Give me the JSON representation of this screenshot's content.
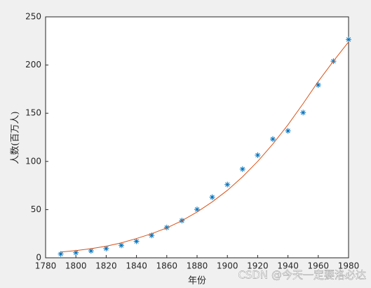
{
  "chart_data": {
    "type": "scatter",
    "xlabel": "年份",
    "ylabel": "人数(百万人)",
    "watermark": "CSDN @今天一定要洛必达",
    "x": [
      1790,
      1800,
      1810,
      1820,
      1830,
      1840,
      1850,
      1860,
      1870,
      1880,
      1890,
      1900,
      1910,
      1920,
      1930,
      1940,
      1950,
      1960,
      1970,
      1980
    ],
    "series": [
      {
        "kind": "scatter",
        "marker": "*",
        "color": "#0072bd",
        "values": [
          3.9,
          5.3,
          7.2,
          9.6,
          12.9,
          17.1,
          23.2,
          31.4,
          38.6,
          50.2,
          62.9,
          76.0,
          92.0,
          106.5,
          123.2,
          131.7,
          150.7,
          179.3,
          204.0,
          226.5
        ]
      },
      {
        "kind": "line",
        "color": "#d95319",
        "values": [
          6,
          7.5,
          9.5,
          12,
          15.5,
          20,
          25,
          31,
          38.5,
          47.5,
          58,
          70,
          84,
          100,
          118,
          138,
          160,
          183,
          204,
          224
        ]
      }
    ],
    "xlim": [
      1780,
      1980
    ],
    "xticks": [
      1780,
      1800,
      1820,
      1840,
      1860,
      1880,
      1900,
      1920,
      1940,
      1960,
      1980
    ],
    "ylim": [
      0,
      250
    ],
    "yticks": [
      0,
      50,
      100,
      150,
      200,
      250
    ],
    "grid": false
  }
}
